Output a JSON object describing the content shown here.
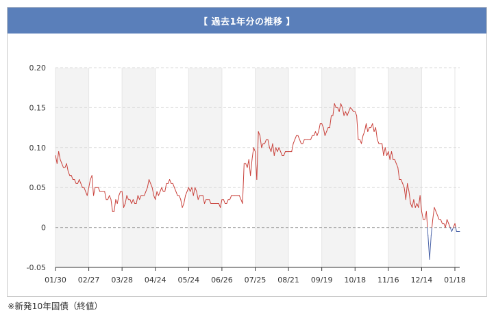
{
  "title": "【 過去1年分の推移 】",
  "note": "※新発10年国債（終値）",
  "colors": {
    "header": "#5a7fba",
    "positive": "#c9403a",
    "negative": "#4a63a8",
    "band": "#f3f3f3",
    "zero": "#aaaaaa"
  },
  "chart_data": {
    "type": "line",
    "title": "【 過去1年分の推移 】",
    "xlabel": "",
    "ylabel": "",
    "ylim": [
      -0.05,
      0.2
    ],
    "yticks": [
      0.2,
      0.15,
      0.1,
      0.05,
      0,
      -0.05
    ],
    "ytick_labels": [
      "0.20",
      "0.15",
      "0.10",
      "0.05",
      "0",
      "-0.05"
    ],
    "xtick_labels": [
      "01/30",
      "02/27",
      "03/28",
      "04/24",
      "05/24",
      "06/26",
      "07/25",
      "08/21",
      "09/19",
      "10/18",
      "11/16",
      "12/14",
      "01/18"
    ],
    "grid": true,
    "legend": "none",
    "values": [
      0.09,
      0.08,
      0.095,
      0.085,
      0.08,
      0.075,
      0.075,
      0.08,
      0.07,
      0.065,
      0.065,
      0.06,
      0.06,
      0.055,
      0.055,
      0.06,
      0.055,
      0.05,
      0.05,
      0.045,
      0.04,
      0.05,
      0.06,
      0.065,
      0.04,
      0.05,
      0.05,
      0.05,
      0.045,
      0.045,
      0.045,
      0.045,
      0.035,
      0.035,
      0.04,
      0.035,
      0.02,
      0.02,
      0.035,
      0.03,
      0.04,
      0.045,
      0.045,
      0.025,
      0.03,
      0.04,
      0.035,
      0.035,
      0.03,
      0.035,
      0.03,
      0.03,
      0.04,
      0.035,
      0.04,
      0.04,
      0.04,
      0.045,
      0.05,
      0.06,
      0.055,
      0.05,
      0.04,
      0.035,
      0.045,
      0.04,
      0.045,
      0.05,
      0.045,
      0.045,
      0.055,
      0.055,
      0.06,
      0.055,
      0.055,
      0.05,
      0.045,
      0.04,
      0.04,
      0.035,
      0.025,
      0.03,
      0.04,
      0.045,
      0.05,
      0.045,
      0.05,
      0.04,
      0.05,
      0.045,
      0.035,
      0.04,
      0.04,
      0.04,
      0.03,
      0.035,
      0.035,
      0.035,
      0.03,
      0.03,
      0.03,
      0.03,
      0.03,
      0.03,
      0.025,
      0.035,
      0.035,
      0.03,
      0.03,
      0.035,
      0.035,
      0.04,
      0.04,
      0.04,
      0.04,
      0.04,
      0.04,
      0.035,
      0.03,
      0.08,
      0.08,
      0.075,
      0.085,
      0.065,
      0.085,
      0.1,
      0.095,
      0.06,
      0.12,
      0.115,
      0.1,
      0.105,
      0.105,
      0.11,
      0.11,
      0.1,
      0.095,
      0.105,
      0.09,
      0.1,
      0.095,
      0.1,
      0.095,
      0.09,
      0.09,
      0.095,
      0.095,
      0.095,
      0.095,
      0.095,
      0.105,
      0.11,
      0.115,
      0.115,
      0.11,
      0.105,
      0.105,
      0.11,
      0.11,
      0.11,
      0.11,
      0.11,
      0.115,
      0.115,
      0.12,
      0.115,
      0.12,
      0.13,
      0.13,
      0.125,
      0.115,
      0.12,
      0.125,
      0.125,
      0.14,
      0.14,
      0.155,
      0.15,
      0.15,
      0.145,
      0.155,
      0.15,
      0.14,
      0.145,
      0.14,
      0.145,
      0.15,
      0.148,
      0.145,
      0.145,
      0.14,
      0.11,
      0.11,
      0.105,
      0.115,
      0.12,
      0.13,
      0.12,
      0.125,
      0.125,
      0.13,
      0.12,
      0.125,
      0.11,
      0.105,
      0.105,
      0.105,
      0.09,
      0.1,
      0.09,
      0.095,
      0.085,
      0.095,
      0.085,
      0.085,
      0.08,
      0.075,
      0.06,
      0.06,
      0.055,
      0.05,
      0.035,
      0.055,
      0.045,
      0.03,
      0.025,
      0.035,
      0.025,
      0.03,
      0.025,
      0.04,
      0.02,
      0.01,
      0.01,
      0.02,
      -0.01,
      -0.04,
      -0.01,
      0.01,
      0.025,
      0.02,
      0.015,
      0.01,
      0.01,
      0.005,
      0.005,
      0.0,
      0.01,
      0.005,
      0.0,
      -0.005,
      0.0,
      0.005,
      -0.005,
      -0.005,
      -0.005
    ]
  }
}
